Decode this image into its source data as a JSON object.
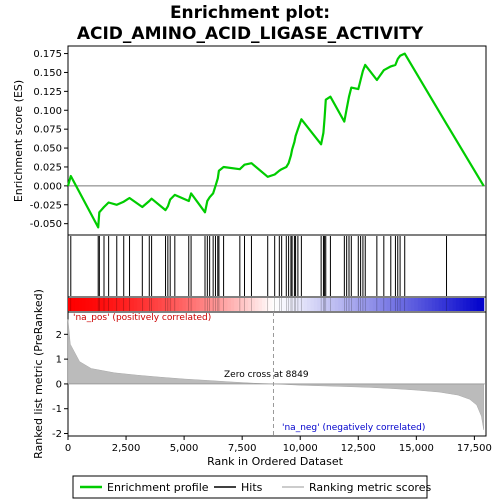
{
  "chart_data": {
    "type": "line",
    "title_line1": "Enrichment plot:",
    "title_line2": "ACID_AMINO_ACID_LIGASE_ACTIVITY",
    "ylabel_top": "Enrichment score (ES)",
    "ylabel_bottom": "Ranked list metric (PreRanked)",
    "xlabel": "Rank in Ordered Dataset",
    "xlim": [
      0,
      18000
    ],
    "es_ylim": [
      -0.065,
      0.185
    ],
    "metric_ylim": [
      -2.1,
      2.9
    ],
    "x_ticks": [
      0,
      2500,
      5000,
      7500,
      10000,
      12500,
      15000,
      17500
    ],
    "x_tick_labels": [
      "0",
      "2,500",
      "5,000",
      "7,500",
      "10,000",
      "12,500",
      "15,000",
      "17,500"
    ],
    "es_ticks": [
      -0.05,
      -0.025,
      0.0,
      0.025,
      0.05,
      0.075,
      0.1,
      0.125,
      0.15,
      0.175
    ],
    "es_tick_labels": [
      "-0.050",
      "-0.025",
      "0.000",
      "0.025",
      "0.050",
      "0.075",
      "0.100",
      "0.125",
      "0.150",
      "0.175"
    ],
    "metric_ticks": [
      -2,
      -1,
      0,
      1,
      2
    ],
    "metric_tick_labels": [
      "-2",
      "-1",
      "0",
      "1",
      "2"
    ],
    "zero_cross_x": 8849,
    "zero_cross_label": "Zero cross at 8849",
    "pos_label": "'na_pos' (positively correlated)",
    "neg_label": "'na_neg' (negatively correlated)",
    "max_rank": 17900,
    "hits": [
      120,
      1300,
      1350,
      1550,
      1750,
      2100,
      2400,
      2650,
      3200,
      3500,
      3600,
      4200,
      4300,
      4400,
      4600,
      5200,
      5300,
      5900,
      6000,
      6100,
      6250,
      6350,
      6450,
      6500,
      6700,
      7400,
      7600,
      7900,
      8600,
      8900,
      9100,
      9200,
      9400,
      9500,
      9600,
      9650,
      9750,
      9800,
      9900,
      10050,
      10900,
      11000,
      11050,
      11100,
      11300,
      11900,
      12000,
      12100,
      12200,
      12500,
      12600,
      12700,
      12800,
      13300,
      13600,
      13900,
      14100,
      14200,
      14300,
      14500,
      16300
    ],
    "es_points": [
      [
        0,
        0.0
      ],
      [
        120,
        0.013
      ],
      [
        1300,
        -0.055
      ],
      [
        1350,
        -0.035
      ],
      [
        1550,
        -0.028
      ],
      [
        1750,
        -0.022
      ],
      [
        2100,
        -0.025
      ],
      [
        2400,
        -0.021
      ],
      [
        2650,
        -0.016
      ],
      [
        3200,
        -0.028
      ],
      [
        3500,
        -0.02
      ],
      [
        3600,
        -0.017
      ],
      [
        4200,
        -0.032
      ],
      [
        4300,
        -0.027
      ],
      [
        4400,
        -0.018
      ],
      [
        4600,
        -0.012
      ],
      [
        5200,
        -0.02
      ],
      [
        5300,
        -0.01
      ],
      [
        5900,
        -0.035
      ],
      [
        6000,
        -0.02
      ],
      [
        6100,
        -0.015
      ],
      [
        6250,
        -0.01
      ],
      [
        6350,
        0.0
      ],
      [
        6450,
        0.01
      ],
      [
        6500,
        0.02
      ],
      [
        6700,
        0.025
      ],
      [
        7400,
        0.022
      ],
      [
        7600,
        0.028
      ],
      [
        7900,
        0.03
      ],
      [
        8600,
        0.012
      ],
      [
        8900,
        0.015
      ],
      [
        9100,
        0.02
      ],
      [
        9200,
        0.022
      ],
      [
        9400,
        0.025
      ],
      [
        9500,
        0.03
      ],
      [
        9600,
        0.04
      ],
      [
        9650,
        0.048
      ],
      [
        9750,
        0.058
      ],
      [
        9800,
        0.066
      ],
      [
        9900,
        0.075
      ],
      [
        10050,
        0.088
      ],
      [
        10900,
        0.055
      ],
      [
        11000,
        0.07
      ],
      [
        11050,
        0.09
      ],
      [
        11100,
        0.114
      ],
      [
        11300,
        0.118
      ],
      [
        11900,
        0.085
      ],
      [
        12000,
        0.102
      ],
      [
        12100,
        0.118
      ],
      [
        12200,
        0.13
      ],
      [
        12500,
        0.128
      ],
      [
        12600,
        0.14
      ],
      [
        12700,
        0.152
      ],
      [
        12800,
        0.16
      ],
      [
        13300,
        0.14
      ],
      [
        13600,
        0.153
      ],
      [
        13900,
        0.158
      ],
      [
        14100,
        0.16
      ],
      [
        14200,
        0.168
      ],
      [
        14300,
        0.172
      ],
      [
        14500,
        0.175
      ],
      [
        16300,
        0.082
      ],
      [
        17900,
        0.0
      ]
    ],
    "metric_profile": [
      [
        0,
        2.6
      ],
      [
        100,
        1.6
      ],
      [
        500,
        0.9
      ],
      [
        1000,
        0.62
      ],
      [
        2000,
        0.45
      ],
      [
        3000,
        0.35
      ],
      [
        4000,
        0.27
      ],
      [
        5000,
        0.2
      ],
      [
        6000,
        0.14
      ],
      [
        7000,
        0.08
      ],
      [
        8000,
        0.03
      ],
      [
        8849,
        0.0
      ],
      [
        10000,
        -0.05
      ],
      [
        11000,
        -0.08
      ],
      [
        12000,
        -0.11
      ],
      [
        13000,
        -0.14
      ],
      [
        14000,
        -0.19
      ],
      [
        15000,
        -0.25
      ],
      [
        16000,
        -0.33
      ],
      [
        16800,
        -0.45
      ],
      [
        17300,
        -0.62
      ],
      [
        17600,
        -0.85
      ],
      [
        17800,
        -1.3
      ],
      [
        17900,
        -1.85
      ]
    ],
    "colors": {
      "es_line": "#00cc00",
      "hit_line": "#000000",
      "metric_fill": "#bbbbbb",
      "zero_cross": "#999999",
      "pos_label": "#cc0000",
      "neg_label": "#0000cc",
      "bar_pos": "#ff0000",
      "bar_mid": "#ffffff",
      "bar_neg": "#0000cc"
    },
    "legend": [
      {
        "label": "Enrichment profile",
        "kind": "line",
        "color": "#00cc00"
      },
      {
        "label": "Hits",
        "kind": "line",
        "color": "#000000"
      },
      {
        "label": "Ranking metric scores",
        "kind": "line",
        "color": "#bbbbbb"
      }
    ]
  }
}
